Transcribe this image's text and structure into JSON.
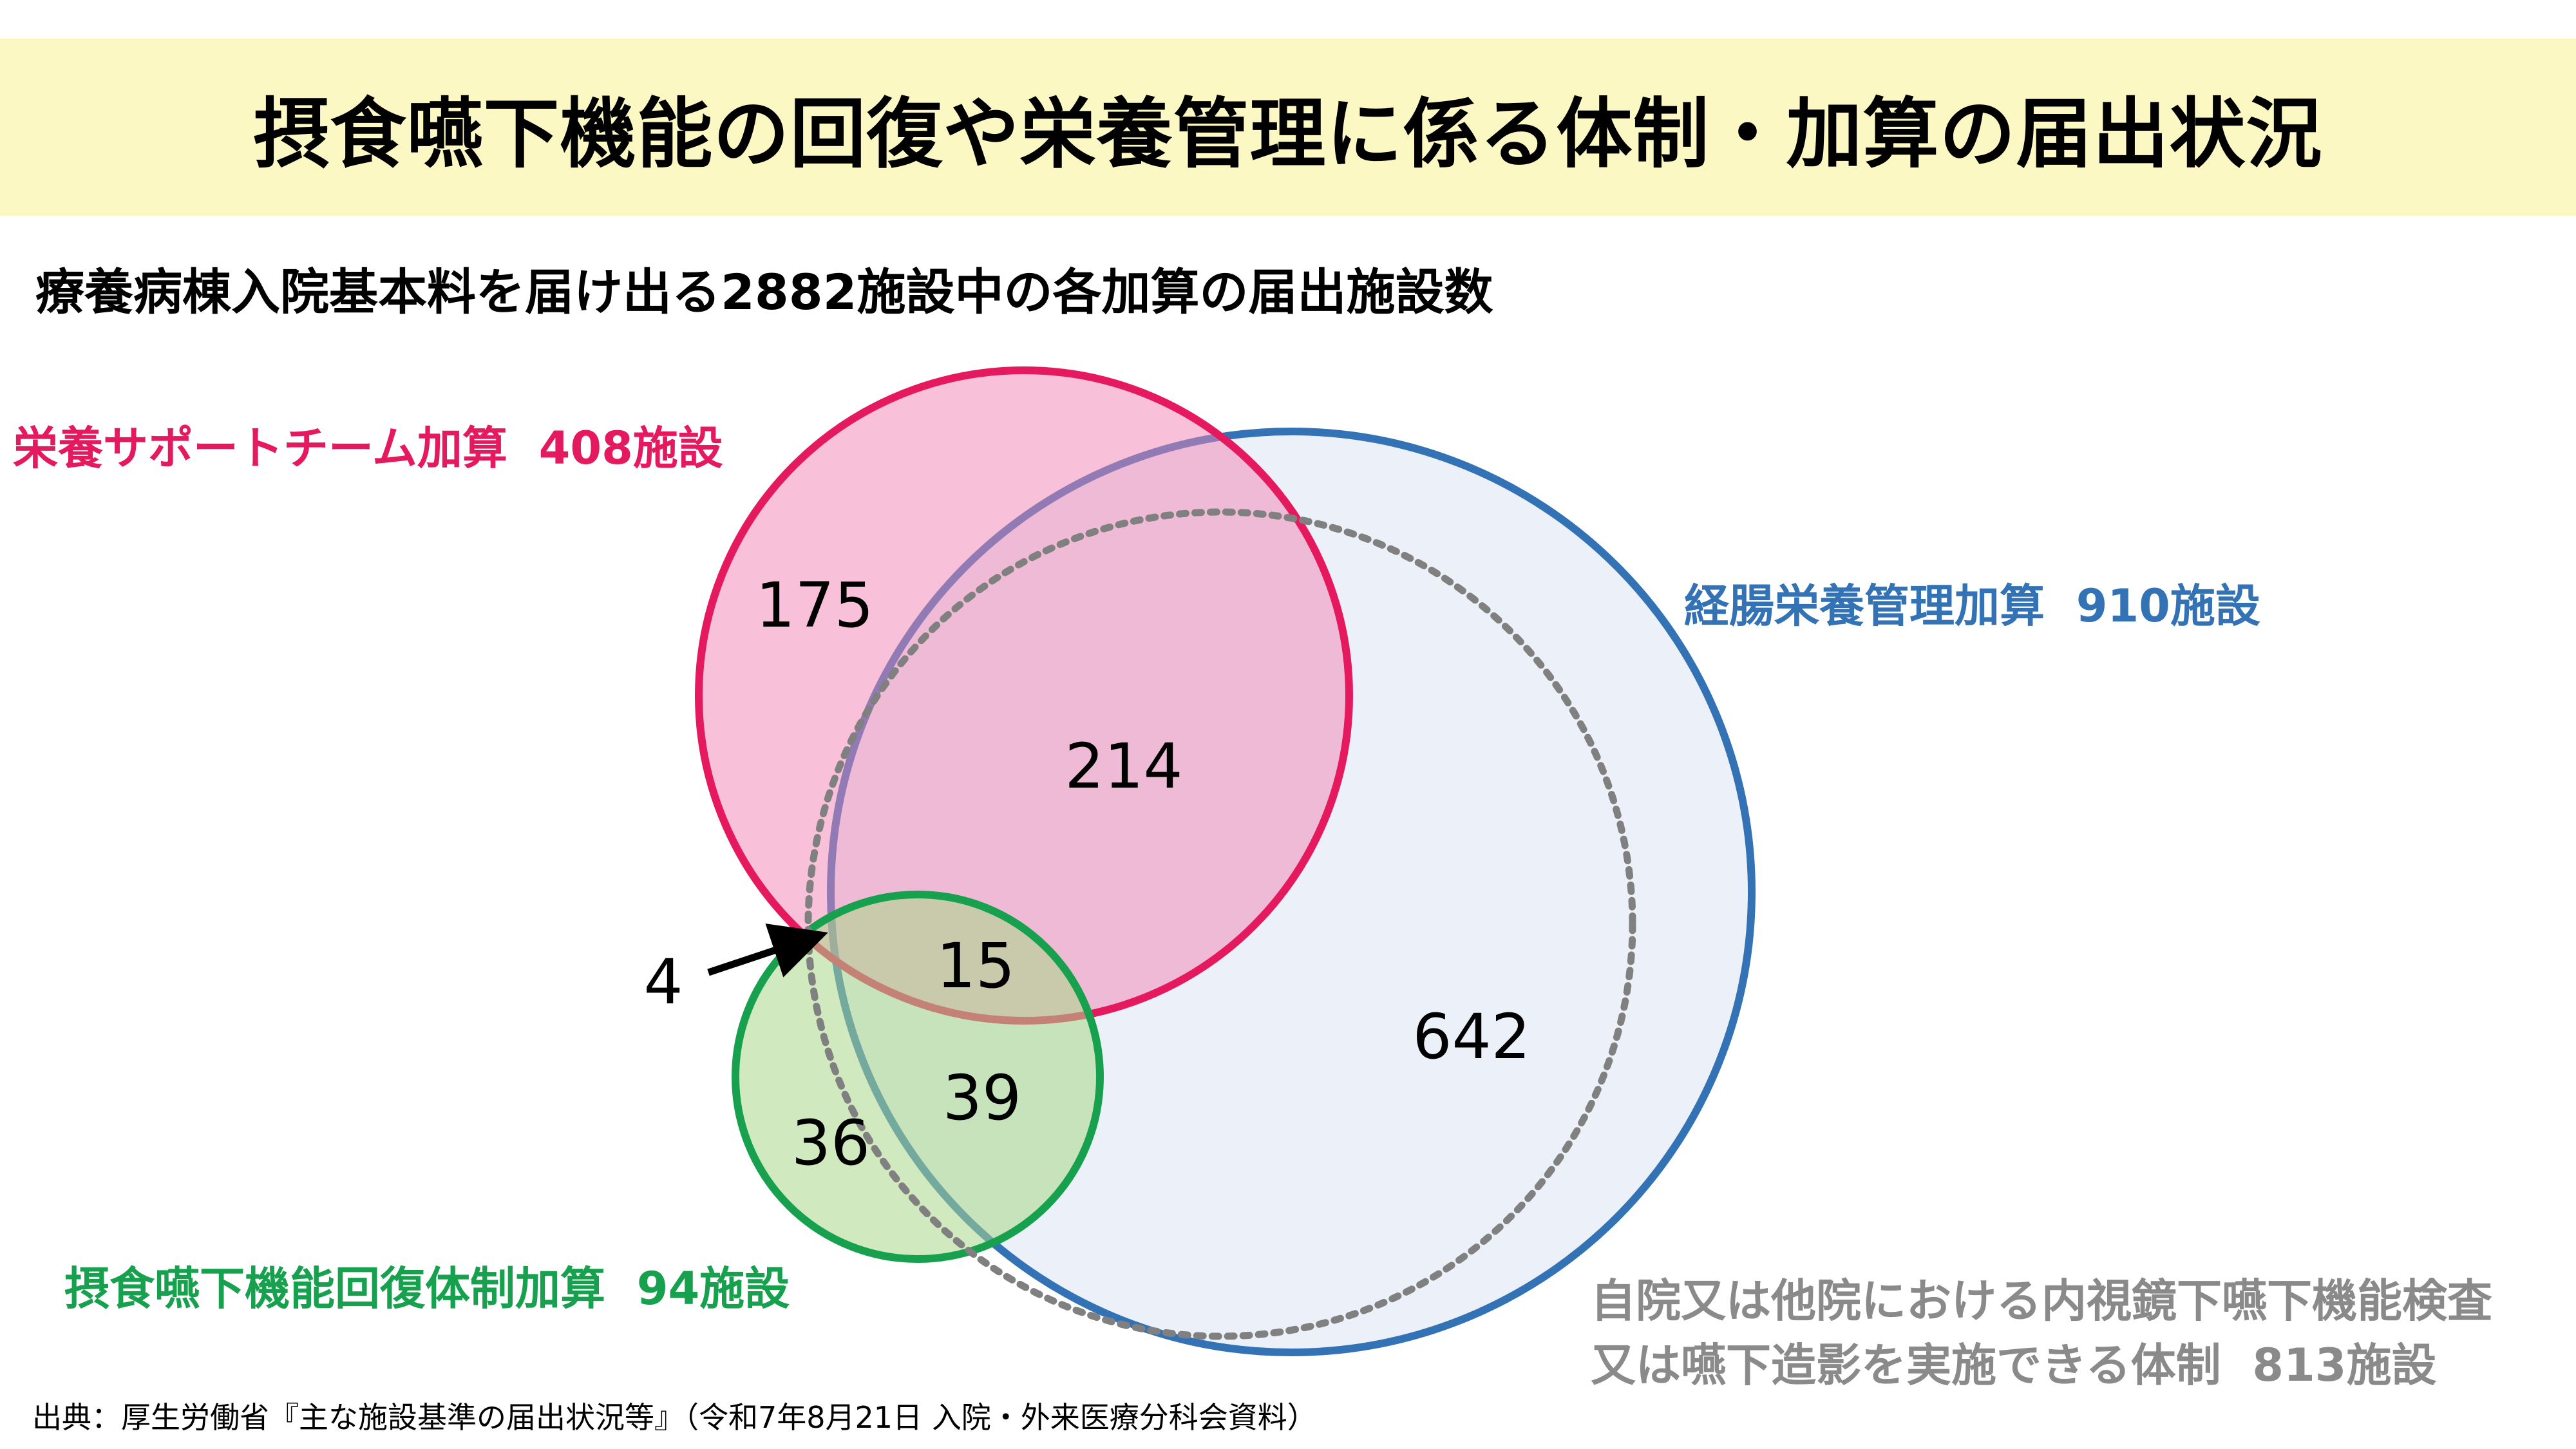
{
  "title": "摂食嚥下機能の回復や栄養管理に係る体制・加算の届出状況",
  "subtitle": "療養病棟入院基本料を届け出る2882施設中の各加算の届出施設数",
  "sets": {
    "nst": {
      "label": "栄養サポートチーム加算",
      "count": "408施設",
      "color": "#e5195e",
      "fill": "#f7a8c8"
    },
    "enteral": {
      "label": "経腸栄養管理加算",
      "count": "910施設",
      "color": "#3372b4",
      "fill": "#e7ecf7"
    },
    "swallow": {
      "label": "摂食嚥下機能回復体制加算",
      "count": "94施設",
      "color": "#17a14e",
      "fill": "#c3e3ad"
    },
    "exam": {
      "label_line1": "自院又は他院における内視鏡下嚥下機能検査",
      "label_line2": "又は嚥下造影を実施できる体制",
      "count": "813施設",
      "color": "#8a8a8a"
    }
  },
  "regions": {
    "nst_only": "175",
    "nst_enteral": "214",
    "nst_swallow_only": "4",
    "nst_enteral_swallow": "15",
    "enteral_swallow": "39",
    "swallow_only": "36",
    "enteral_only": "642"
  },
  "source": "出典：厚生労働省『主な施設基準の届出状況等』（令和7年8月21日 入院・外来医療分科会資料）"
}
